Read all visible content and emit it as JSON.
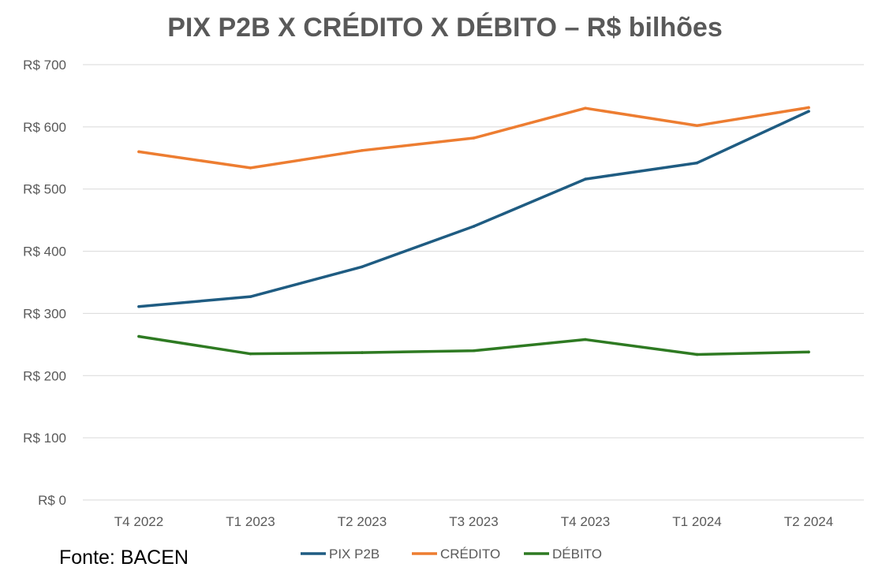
{
  "chart_data": {
    "type": "line",
    "title": "PIX P2B X CRÉDITO X DÉBITO – R$ bilhões",
    "categories": [
      "T4 2022",
      "T1 2023",
      "T2 2023",
      "T3 2023",
      "T4 2023",
      "T1 2024",
      "T2 2024"
    ],
    "series": [
      {
        "name": "PIX P2B",
        "color": "#1f5c82",
        "values": [
          311,
          327,
          375,
          440,
          516,
          542,
          625
        ]
      },
      {
        "name": "CRÉDITO",
        "color": "#ed7d31",
        "values": [
          560,
          534,
          562,
          582,
          630,
          602,
          631
        ]
      },
      {
        "name": "DÉBITO",
        "color": "#2e7a22",
        "values": [
          263,
          235,
          237,
          240,
          258,
          234,
          238
        ]
      }
    ],
    "ylim": [
      0,
      700
    ],
    "yticks": [
      0,
      100,
      200,
      300,
      400,
      500,
      600,
      700
    ],
    "ytick_labels": [
      "R$ 0",
      "R$ 100",
      "R$ 200",
      "R$ 300",
      "R$ 400",
      "R$ 500",
      "R$ 600",
      "R$ 700"
    ],
    "xlabel": "",
    "ylabel": "",
    "grid": true,
    "legend_position": "bottom"
  },
  "source": "Fonte: BACEN"
}
